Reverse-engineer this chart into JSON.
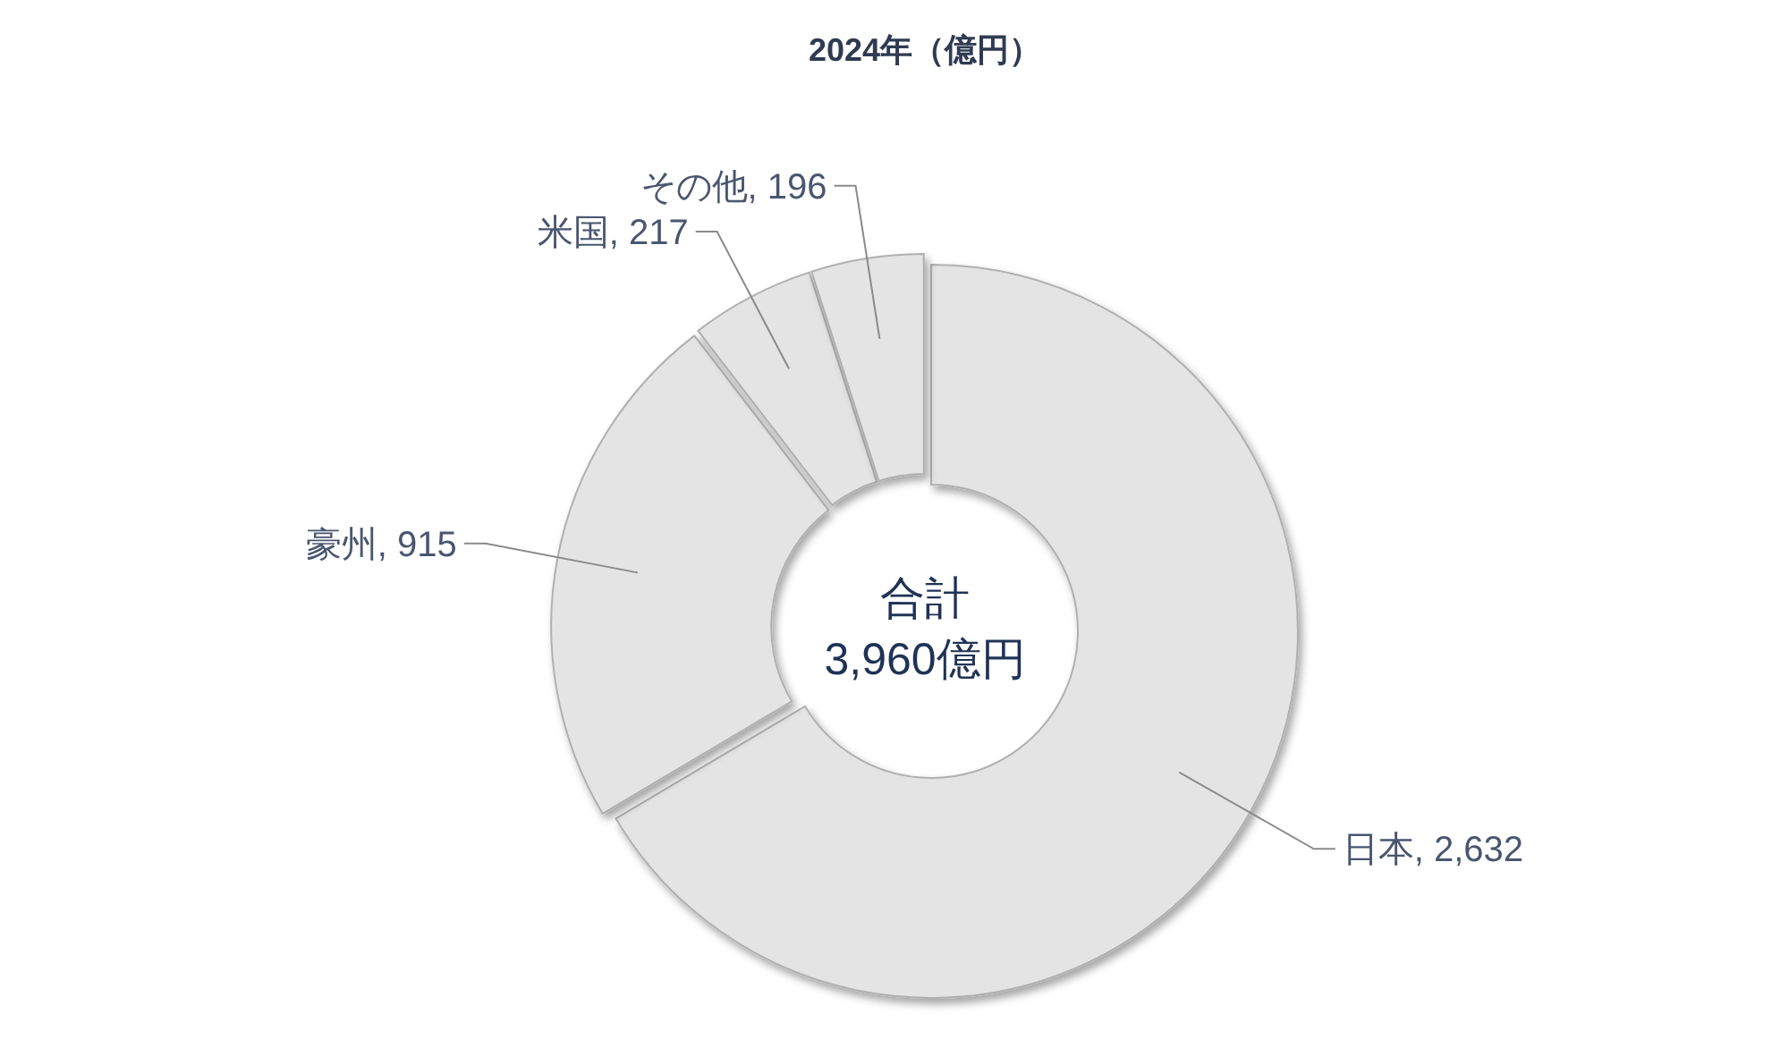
{
  "chart_data": {
    "type": "donut",
    "title": "2024年（億円）",
    "categories": [
      "日本",
      "豪州",
      "米国",
      "その他"
    ],
    "values": [
      2632,
      915,
      217,
      196
    ],
    "colors": [
      "#e4e4e4",
      "#e4e4e4",
      "#e4e4e4",
      "#e4e4e4"
    ],
    "value_labels": [
      "2,632",
      "915",
      "217",
      "196"
    ],
    "annotations": [
      "合計\n3,960億円"
    ]
  }
}
